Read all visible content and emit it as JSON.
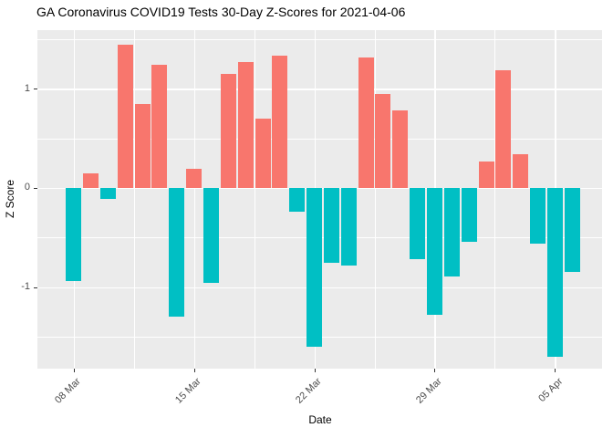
{
  "title": "GA Coronavirus COVID19 Tests 30-Day Z-Scores for 2021-04-06",
  "chart_data": {
    "type": "bar",
    "title": "GA Coronavirus COVID19 Tests 30-Day Z-Scores for 2021-04-06",
    "xlabel": "Date",
    "ylabel": "Z Score",
    "x_tick_labels": [
      "08 Mar",
      "15 Mar",
      "22 Mar",
      "29 Mar",
      "05 Apr"
    ],
    "x_tick_indices": [
      0,
      7,
      14,
      21,
      28
    ],
    "y_tick_labels": [
      "1",
      "0",
      "-1"
    ],
    "y_ticks": [
      1,
      0,
      -1
    ],
    "y_minor_ticks": [
      1.5,
      0.5,
      -0.5,
      -1.5
    ],
    "ylim": [
      -1.82,
      1.59
    ],
    "grid": true,
    "legend": false,
    "colors": {
      "positive": "#F8766D",
      "negative": "#00BFC4",
      "panel_background": "#EBEBEB",
      "gridline": "#FFFFFF",
      "tick_label": "#4D4D4D",
      "text": "#000000"
    },
    "points": [
      {
        "date": "08 Mar",
        "z": -0.94
      },
      {
        "date": "09 Mar",
        "z": 0.15
      },
      {
        "date": "10 Mar",
        "z": -0.11
      },
      {
        "date": "11 Mar",
        "z": 1.44
      },
      {
        "date": "12 Mar",
        "z": 0.85
      },
      {
        "date": "13 Mar",
        "z": 1.24
      },
      {
        "date": "14 Mar",
        "z": -1.3
      },
      {
        "date": "15 Mar",
        "z": 0.19
      },
      {
        "date": "16 Mar",
        "z": -0.96
      },
      {
        "date": "17 Mar",
        "z": 1.15
      },
      {
        "date": "18 Mar",
        "z": 1.27
      },
      {
        "date": "19 Mar",
        "z": 0.7
      },
      {
        "date": "20 Mar",
        "z": 1.33
      },
      {
        "date": "21 Mar",
        "z": -0.24
      },
      {
        "date": "22 Mar",
        "z": -1.6
      },
      {
        "date": "23 Mar",
        "z": -0.75
      },
      {
        "date": "24 Mar",
        "z": -0.78
      },
      {
        "date": "25 Mar",
        "z": 1.31
      },
      {
        "date": "26 Mar",
        "z": 0.95
      },
      {
        "date": "27 Mar",
        "z": 0.78
      },
      {
        "date": "28 Mar",
        "z": -0.72
      },
      {
        "date": "29 Mar",
        "z": -1.28
      },
      {
        "date": "30 Mar",
        "z": -0.89
      },
      {
        "date": "31 Mar",
        "z": -0.54
      },
      {
        "date": "01 Apr",
        "z": 0.27
      },
      {
        "date": "02 Apr",
        "z": 1.19
      },
      {
        "date": "03 Apr",
        "z": 0.34
      },
      {
        "date": "04 Apr",
        "z": -0.56
      },
      {
        "date": "05 Apr",
        "z": -1.7
      },
      {
        "date": "06 Apr",
        "z": -0.85
      }
    ]
  }
}
